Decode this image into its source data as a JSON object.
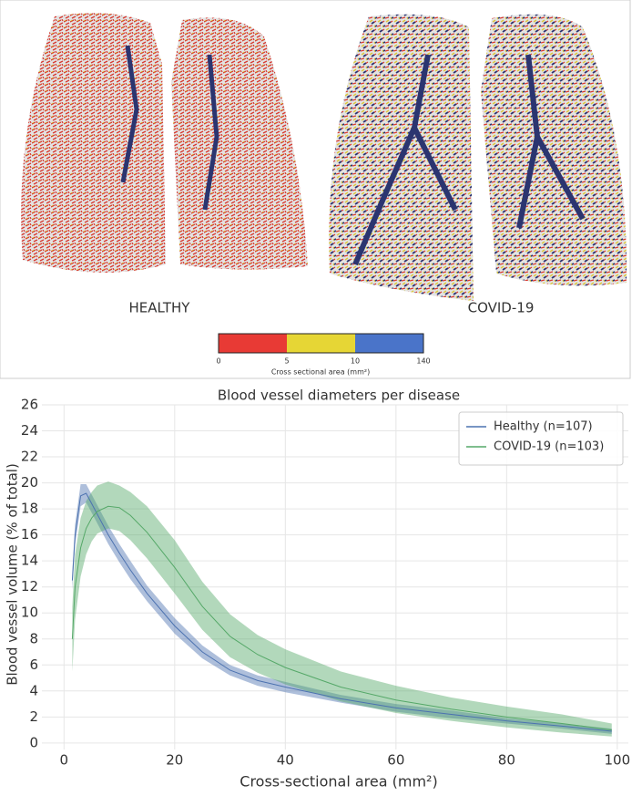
{
  "figure": {
    "labels": [
      "HEALTHY",
      "COVID-19"
    ],
    "colorbar": {
      "ticks": [
        0,
        5,
        10,
        140
      ],
      "colors": [
        "#e83a35",
        "#e6d635",
        "#4a74c9"
      ],
      "label": "Cross sectional area (mm²)"
    }
  },
  "chart_data": {
    "type": "line",
    "title": "Blood vessel diameters per disease",
    "x_label": "Cross-sectional area (mm²)",
    "y_label": "Blood vessel volume (% of total)",
    "x": [
      1.5,
      2,
      3,
      4,
      5,
      6,
      8,
      10,
      12,
      15,
      20,
      25,
      30,
      35,
      40,
      50,
      60,
      70,
      80,
      90,
      99
    ],
    "series": [
      {
        "name": "Healthy (n=107)",
        "color": "#4c72b0",
        "values": [
          12.5,
          16,
          19,
          19.2,
          18.4,
          17.6,
          16,
          14.6,
          13.3,
          11.5,
          9,
          7,
          5.6,
          4.8,
          4.3,
          3.4,
          2.7,
          2.2,
          1.7,
          1.3,
          0.9
        ],
        "lower": [
          11.8,
          15.2,
          18.2,
          18.5,
          17.7,
          16.9,
          15.3,
          13.9,
          12.6,
          10.9,
          8.4,
          6.5,
          5.2,
          4.4,
          3.9,
          3.1,
          2.4,
          1.9,
          1.5,
          1.1,
          0.7
        ],
        "upper": [
          13.2,
          16.8,
          19.9,
          19.9,
          19.1,
          18.3,
          16.7,
          15.3,
          14,
          12.1,
          9.6,
          7.5,
          6,
          5.2,
          4.7,
          3.7,
          3,
          2.5,
          1.9,
          1.5,
          1.1
        ]
      },
      {
        "name": "COVID-19 (n=103)",
        "color": "#55a868",
        "values": [
          8,
          12,
          15,
          16.5,
          17.3,
          17.8,
          18.2,
          18.1,
          17.5,
          16.2,
          13.5,
          10.5,
          8.2,
          6.8,
          5.8,
          4.3,
          3.3,
          2.6,
          2,
          1.5,
          1
        ],
        "lower": [
          5.5,
          9.5,
          12.8,
          14.5,
          15.5,
          16.1,
          16.5,
          16.3,
          15.6,
          14.2,
          11.5,
          8.7,
          6.6,
          5.4,
          4.5,
          3.2,
          2.3,
          1.7,
          1.2,
          0.8,
          0.5
        ],
        "upper": [
          10.5,
          14.5,
          17.3,
          18.6,
          19.3,
          19.8,
          20.1,
          19.8,
          19.3,
          18.2,
          15.6,
          12.4,
          9.9,
          8.3,
          7.2,
          5.5,
          4.4,
          3.5,
          2.8,
          2.2,
          1.5
        ]
      }
    ],
    "xlim": [
      -4,
      102
    ],
    "xticks": [
      0,
      20,
      40,
      60,
      80,
      100
    ],
    "ylim": [
      -0.5,
      26
    ],
    "yticks": [
      0,
      2,
      4,
      6,
      8,
      10,
      12,
      14,
      16,
      18,
      20,
      22,
      24,
      26
    ],
    "grid": true,
    "legend": "upper-right"
  }
}
